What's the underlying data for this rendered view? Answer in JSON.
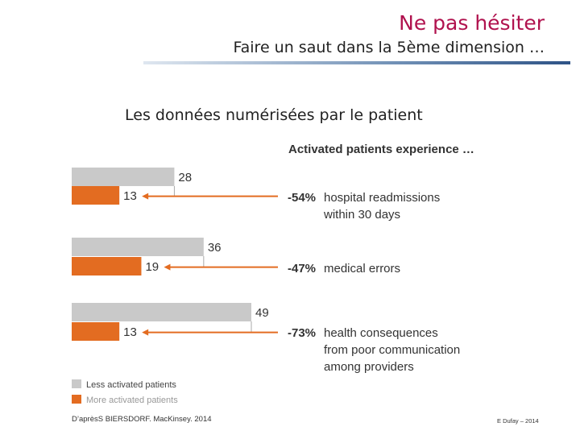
{
  "header": {
    "title": "Ne pas hésiter",
    "subtitle": "Faire un saut dans la 5ème dimension …",
    "section": "Les données numérisées par le patient"
  },
  "chart_data": {
    "type": "bar",
    "orientation": "horizontal",
    "title": "Activated patients experience …",
    "categories": [
      "hospital readmissions within 30 days",
      "medical errors",
      "health consequences from poor communication among providers"
    ],
    "series": [
      {
        "name": "Less activated patients",
        "color": "#c9c9c9",
        "values": [
          28,
          36,
          49
        ]
      },
      {
        "name": "More activated patients",
        "color": "#e36c21",
        "values": [
          13,
          19,
          13
        ]
      }
    ],
    "annotations": [
      {
        "pct": "-54%",
        "lines": [
          "hospital readmissions",
          "within 30 days"
        ]
      },
      {
        "pct": "-47%",
        "lines": [
          "medical errors"
        ]
      },
      {
        "pct": "-73%",
        "lines": [
          "health consequences",
          "from poor communication",
          "among providers"
        ]
      }
    ],
    "legend_position": "bottom-left",
    "xlim": [
      0,
      49
    ]
  },
  "footer": {
    "source": "D’aprèsS BIERSDORF. MacKinsey. 2014",
    "author": "E Dufay – 2014"
  }
}
